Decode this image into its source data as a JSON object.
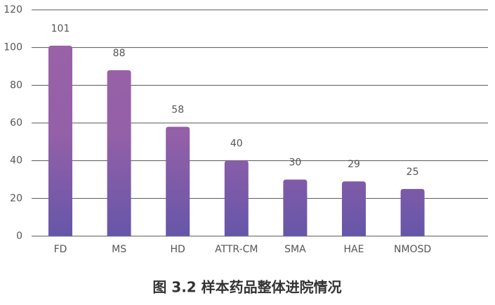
{
  "chart_data": {
    "type": "bar",
    "title": "图 3.2 样本药品整体进院情况",
    "categories": [
      "FD",
      "MS",
      "HD",
      "ATTR-CM",
      "SMA",
      "HAE",
      "NMOSD"
    ],
    "values": [
      101,
      88,
      58,
      40,
      30,
      29,
      25
    ],
    "color": "#9060a8",
    "ylim": [
      0,
      120
    ],
    "yticks": [
      0,
      20,
      40,
      60,
      80,
      100,
      120
    ],
    "grid": true
  }
}
